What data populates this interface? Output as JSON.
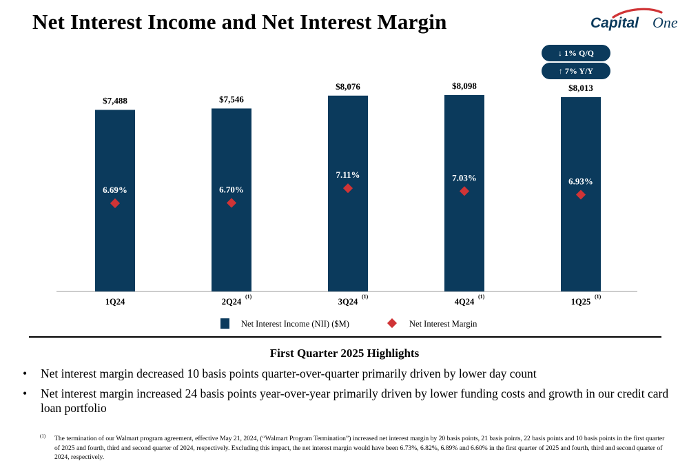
{
  "header": {
    "title": "Net Interest Income and Net Interest Margin",
    "logo_text_part1": "Capital",
    "logo_text_part2": "One"
  },
  "badges": [
    {
      "label": "↓ 1% Q/Q"
    },
    {
      "label": "↑ 7% Y/Y"
    }
  ],
  "colors": {
    "bar": "#0b3a5c",
    "marker": "#d03436",
    "logo_blue": "#0b3a5c",
    "logo_red": "#d03436"
  },
  "chart_data": {
    "type": "bar",
    "categories": [
      "1Q24",
      "2Q24",
      "3Q24",
      "4Q24",
      "1Q25"
    ],
    "footnote_marks": [
      "",
      "(1)",
      "(1)",
      "(1)",
      "(1)"
    ],
    "series": [
      {
        "name": "Net Interest Income (NII) ($M)",
        "type": "bar",
        "values": [
          7488,
          7546,
          8076,
          8098,
          8013
        ],
        "labels": [
          "$7,488",
          "$7,546",
          "$8,076",
          "$8,098",
          "$8,013"
        ]
      },
      {
        "name": "Net Interest Margin",
        "type": "scatter",
        "marker": "diamond",
        "values": [
          6.69,
          6.7,
          7.11,
          7.03,
          6.93
        ],
        "labels": [
          "6.69%",
          "6.70%",
          "7.11%",
          "7.03%",
          "6.93%"
        ]
      }
    ],
    "legend": "bottom",
    "grid": false
  },
  "highlights": {
    "title": "First Quarter 2025 Highlights",
    "bullet_char": "•",
    "items": [
      "Net interest margin decreased 10 basis points quarter-over-quarter primarily driven by lower day count",
      "Net interest margin increased 24 basis points year-over-year primarily driven by lower funding costs and growth in our credit card loan portfolio"
    ]
  },
  "footnote": {
    "mark": "(1)",
    "text": "The termination of our Walmart program agreement, effective May 21, 2024, (“Walmart Program Termination”) increased net interest margin by 20 basis points, 21 basis points, 22 basis points and 10 basis points in the first quarter of 2025 and fourth, third and second quarter of 2024, respectively. Excluding this impact, the net interest margin would have been 6.73%, 6.82%, 6.89% and 6.60% in the first quarter of 2025 and fourth, third and second quarter of 2024, respectively."
  }
}
